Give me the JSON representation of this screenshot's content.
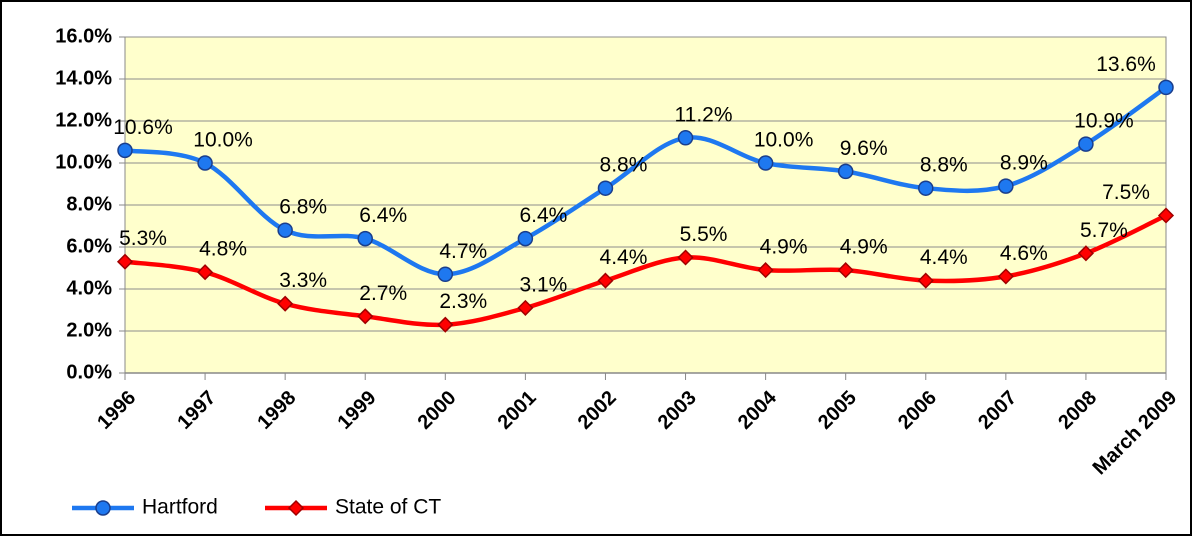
{
  "chart_data": {
    "type": "line",
    "categories": [
      "1996",
      "1997",
      "1998",
      "1999",
      "2000",
      "2001",
      "2002",
      "2003",
      "2004",
      "2005",
      "2006",
      "2007",
      "2008",
      "March 2009"
    ],
    "series": [
      {
        "name": "Hartford",
        "color": "#1e78f0",
        "marker": "circle",
        "values": [
          10.6,
          10.0,
          6.8,
          6.4,
          4.7,
          6.4,
          8.8,
          11.2,
          10.0,
          9.6,
          8.8,
          8.9,
          10.9,
          13.6
        ],
        "value_labels": [
          "10.6%",
          "10.0%",
          "6.8%",
          "6.4%",
          "4.7%",
          "6.4%",
          "8.8%",
          "11.2%",
          "10.0%",
          "9.6%",
          "8.8%",
          "8.9%",
          "10.9%",
          "13.6%"
        ]
      },
      {
        "name": "State of CT",
        "color": "#ff0000",
        "marker": "diamond",
        "values": [
          5.3,
          4.8,
          3.3,
          2.7,
          2.3,
          3.1,
          4.4,
          5.5,
          4.9,
          4.9,
          4.4,
          4.6,
          5.7,
          7.5
        ],
        "value_labels": [
          "5.3%",
          "4.8%",
          "3.3%",
          "2.7%",
          "2.3%",
          "3.1%",
          "4.4%",
          "5.5%",
          "4.9%",
          "4.9%",
          "4.4%",
          "4.6%",
          "5.7%",
          "7.5%"
        ]
      }
    ],
    "ylim": [
      0,
      16
    ],
    "yticks": [
      {
        "value": 0,
        "label": "0.0%"
      },
      {
        "value": 2,
        "label": "2.0%"
      },
      {
        "value": 4,
        "label": "4.0%"
      },
      {
        "value": 6,
        "label": "6.0%"
      },
      {
        "value": 8,
        "label": "8.0%"
      },
      {
        "value": 10,
        "label": "10.0%"
      },
      {
        "value": 12,
        "label": "12.0%"
      },
      {
        "value": 14,
        "label": "14.0%"
      },
      {
        "value": 16,
        "label": "16.0%"
      }
    ],
    "grid": true,
    "smooth": true,
    "legend": "bottom-left",
    "background": "#ffffcc"
  }
}
